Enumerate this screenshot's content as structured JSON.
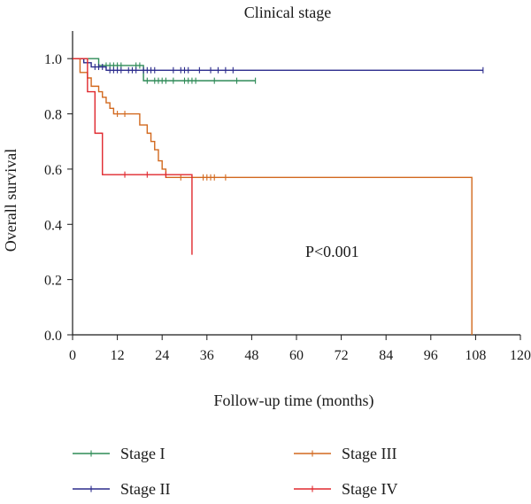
{
  "chart_data": {
    "type": "line",
    "subtype": "kaplan-meier",
    "title": "Clinical stage",
    "xlabel": "Follow-up time (months)",
    "ylabel": "Overall survival",
    "xlim": [
      0,
      120
    ],
    "ylim": [
      0,
      1.1
    ],
    "xticks": [
      0,
      12,
      24,
      36,
      48,
      60,
      72,
      84,
      96,
      108,
      120
    ],
    "xtick_labels": [
      "0",
      "12",
      "24",
      "36",
      "48",
      "60",
      "72",
      "84",
      "96",
      "108",
      "120"
    ],
    "yticks": [
      0.0,
      0.2,
      0.4,
      0.6,
      0.8,
      1.0
    ],
    "ytick_labels": [
      "0.0",
      "0.2",
      "0.4",
      "0.6",
      "0.8",
      "1.0"
    ],
    "grid": false,
    "legend_position": "bottom",
    "annotation": "P<0.001",
    "series": [
      {
        "name": "Stage I",
        "color": "#2e8b57",
        "steps": [
          [
            0,
            1.0
          ],
          [
            7,
            0.975
          ],
          [
            19,
            0.92
          ],
          [
            49,
            0.92
          ]
        ],
        "censored": [
          [
            9,
            0.975
          ],
          [
            10,
            0.975
          ],
          [
            11,
            0.975
          ],
          [
            12,
            0.975
          ],
          [
            13,
            0.975
          ],
          [
            17,
            0.975
          ],
          [
            18,
            0.975
          ],
          [
            20,
            0.92
          ],
          [
            22,
            0.92
          ],
          [
            23,
            0.92
          ],
          [
            24,
            0.92
          ],
          [
            25,
            0.92
          ],
          [
            27,
            0.92
          ],
          [
            30,
            0.92
          ],
          [
            31,
            0.92
          ],
          [
            32,
            0.92
          ],
          [
            33,
            0.92
          ],
          [
            38,
            0.92
          ],
          [
            44,
            0.92
          ],
          [
            49,
            0.92
          ]
        ]
      },
      {
        "name": "Stage II",
        "color": "#2b2b8c",
        "steps": [
          [
            0,
            1.0
          ],
          [
            3,
            0.985
          ],
          [
            5,
            0.97
          ],
          [
            9,
            0.958
          ],
          [
            110,
            0.958
          ]
        ],
        "censored": [
          [
            6,
            0.97
          ],
          [
            7,
            0.97
          ],
          [
            8,
            0.97
          ],
          [
            10,
            0.958
          ],
          [
            11,
            0.958
          ],
          [
            12,
            0.958
          ],
          [
            13,
            0.958
          ],
          [
            15,
            0.958
          ],
          [
            16,
            0.958
          ],
          [
            17,
            0.958
          ],
          [
            19,
            0.958
          ],
          [
            20,
            0.958
          ],
          [
            21,
            0.958
          ],
          [
            22,
            0.958
          ],
          [
            27,
            0.958
          ],
          [
            29,
            0.958
          ],
          [
            30,
            0.958
          ],
          [
            31,
            0.958
          ],
          [
            34,
            0.958
          ],
          [
            37,
            0.958
          ],
          [
            39,
            0.958
          ],
          [
            41,
            0.958
          ],
          [
            43,
            0.958
          ],
          [
            110,
            0.958
          ]
        ]
      },
      {
        "name": "Stage III",
        "color": "#d2691e",
        "steps": [
          [
            0,
            1.0
          ],
          [
            2,
            0.95
          ],
          [
            4,
            0.93
          ],
          [
            5,
            0.9
          ],
          [
            7,
            0.88
          ],
          [
            8,
            0.86
          ],
          [
            9,
            0.84
          ],
          [
            10,
            0.82
          ],
          [
            11,
            0.8
          ],
          [
            18,
            0.76
          ],
          [
            20,
            0.73
          ],
          [
            21,
            0.7
          ],
          [
            22,
            0.67
          ],
          [
            23,
            0.63
          ],
          [
            24,
            0.6
          ],
          [
            25,
            0.57
          ],
          [
            107,
            0.57
          ],
          [
            107,
            0.0
          ]
        ],
        "censored": [
          [
            12,
            0.8
          ],
          [
            14,
            0.8
          ],
          [
            29,
            0.57
          ],
          [
            35,
            0.57
          ],
          [
            36,
            0.57
          ],
          [
            37,
            0.57
          ],
          [
            38,
            0.57
          ],
          [
            41,
            0.57
          ]
        ]
      },
      {
        "name": "Stage IV",
        "color": "#e0282e",
        "steps": [
          [
            0,
            1.0
          ],
          [
            4,
            0.88
          ],
          [
            6,
            0.73
          ],
          [
            8,
            0.58
          ],
          [
            32,
            0.58
          ],
          [
            32,
            0.29
          ]
        ],
        "censored": [
          [
            14,
            0.58
          ],
          [
            20,
            0.58
          ],
          [
            25,
            0.58
          ]
        ]
      }
    ]
  },
  "legend": [
    {
      "label": "Stage I",
      "color": "#2e8b57"
    },
    {
      "label": "Stage III",
      "color": "#d2691e"
    },
    {
      "label": "Stage II",
      "color": "#2b2b8c"
    },
    {
      "label": "Stage IV",
      "color": "#e0282e"
    }
  ]
}
